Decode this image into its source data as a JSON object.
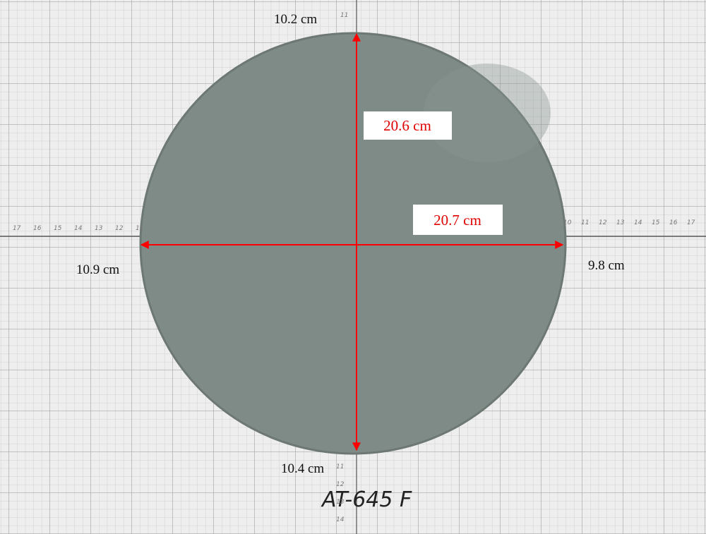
{
  "annotations": {
    "top": "10.2 cm",
    "vertical_diameter": "20.6 cm",
    "horizontal_diameter": "20.7 cm",
    "left": "10.9 cm",
    "right": "9.8 cm",
    "bottom": "10.4 cm"
  },
  "sample_label": "AT-645 F",
  "ruler": {
    "top": [
      "11"
    ],
    "left": [
      "17",
      "16",
      "15",
      "14",
      "13",
      "12",
      "11"
    ],
    "right": [
      "10",
      "11",
      "12",
      "13",
      "14",
      "15",
      "16",
      "17"
    ],
    "bottom": [
      "11",
      "12",
      "13",
      "14"
    ]
  }
}
